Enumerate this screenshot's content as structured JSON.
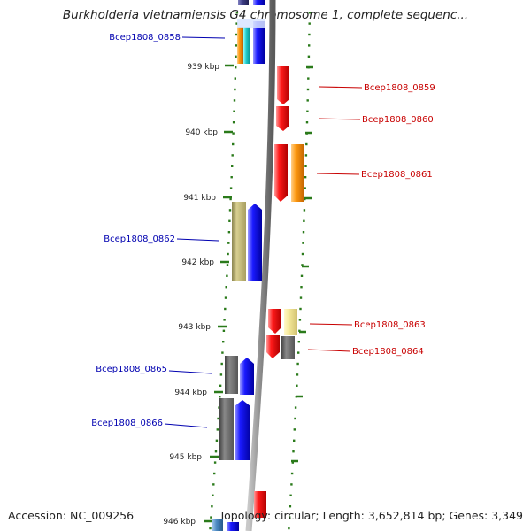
{
  "title": "Burkholderia vietnamiensis G4 chromosome 1, complete sequenc...",
  "accession": "Accession: NC_009256",
  "topology": "Topology: circular; Length: 3,652,814 bp; Genes: 3,349",
  "colors": {
    "tick": "#2a7a1a",
    "backbone": "#8c8c8c",
    "red": "#ee0000",
    "blue": "#1010ee",
    "orange": "#f08a00",
    "khaki": "#c9bf7a",
    "lightyellow": "#f3e69a",
    "gray": "#666666",
    "teal": "#22bbbb",
    "steelblue": "#4a88c0",
    "navy": "#40408a",
    "label_blue": "#0000b0",
    "label_red": "#c80000"
  },
  "kbp_labels": [
    {
      "text": "939 kbp"
    },
    {
      "text": "940 kbp"
    },
    {
      "text": "941 kbp"
    },
    {
      "text": "942 kbp"
    },
    {
      "text": "943 kbp"
    },
    {
      "text": "944 kbp"
    },
    {
      "text": "945 kbp"
    },
    {
      "text": "946 kbp"
    }
  ],
  "gene_labels": [
    {
      "name": "Bcep1808_0858",
      "side": "left"
    },
    {
      "name": "Bcep1808_0859",
      "side": "right"
    },
    {
      "name": "Bcep1808_0860",
      "side": "right"
    },
    {
      "name": "Bcep1808_0861",
      "side": "right"
    },
    {
      "name": "Bcep1808_0862",
      "side": "left"
    },
    {
      "name": "Bcep1808_0863",
      "side": "right"
    },
    {
      "name": "Bcep1808_0864",
      "side": "right"
    },
    {
      "name": "Bcep1808_0865",
      "side": "left"
    },
    {
      "name": "Bcep1808_0866",
      "side": "left"
    }
  ]
}
